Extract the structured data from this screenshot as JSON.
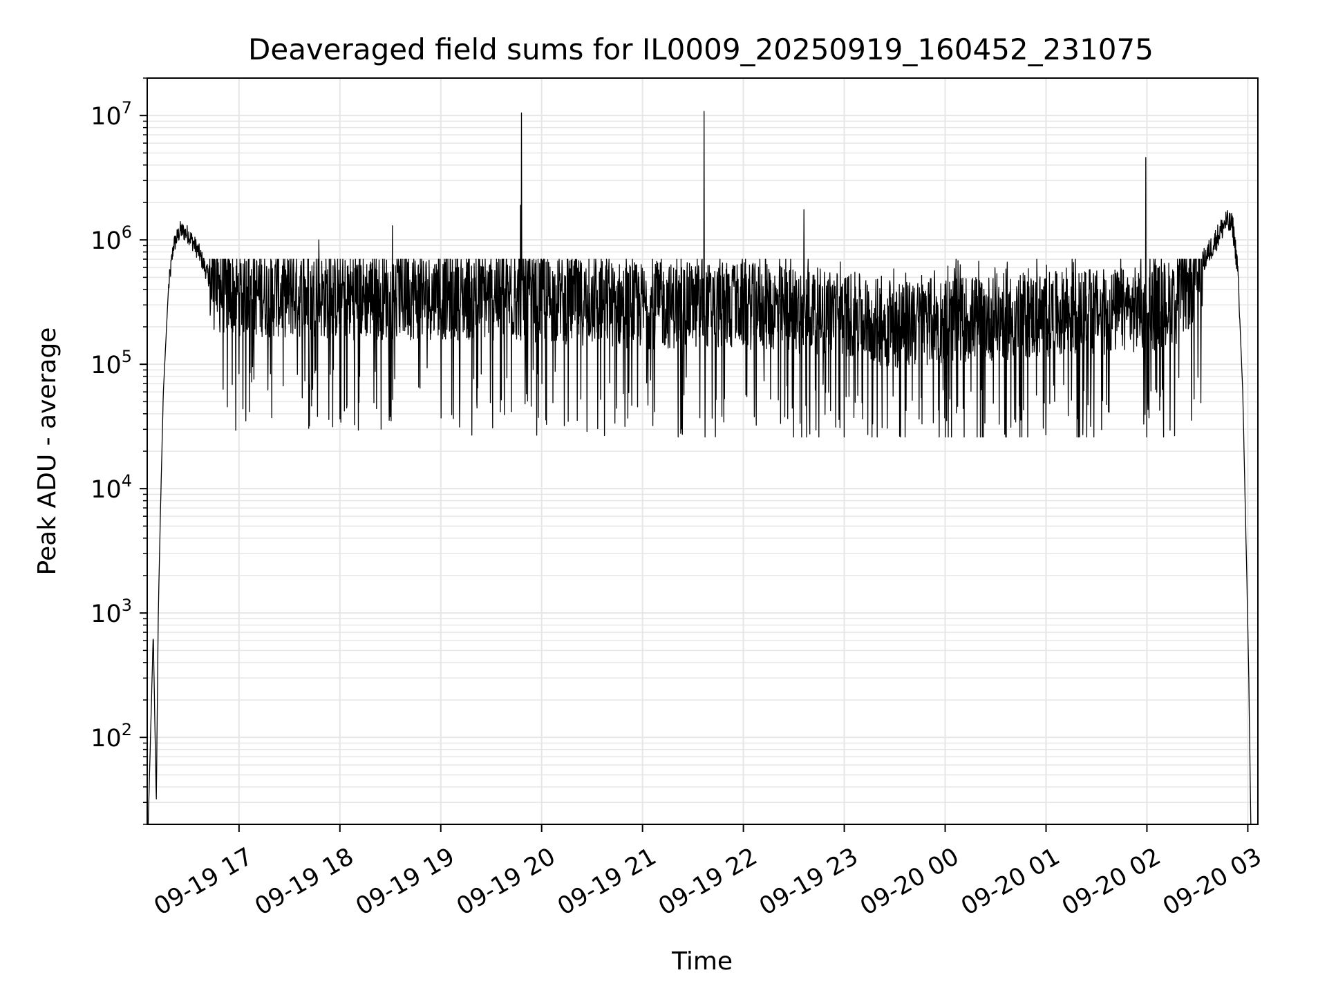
{
  "chart_data": {
    "type": "line",
    "title": "Deaveraged field sums for IL0009_20250919_160452_231075",
    "xlabel": "Time",
    "ylabel": "Peak ADU - average",
    "yscale": "log",
    "ylim": [
      20,
      20000000
    ],
    "xlim_hours": [
      16.09,
      27.1
    ],
    "grid": true,
    "x_ticks": [
      {
        "label": "09-19 17",
        "hour": 17
      },
      {
        "label": "09-19 18",
        "hour": 18
      },
      {
        "label": "09-19 19",
        "hour": 19
      },
      {
        "label": "09-19 20",
        "hour": 20
      },
      {
        "label": "09-19 21",
        "hour": 21
      },
      {
        "label": "09-19 22",
        "hour": 22
      },
      {
        "label": "09-19 23",
        "hour": 23
      },
      {
        "label": "09-20 00",
        "hour": 24
      },
      {
        "label": "09-20 01",
        "hour": 25
      },
      {
        "label": "09-20 02",
        "hour": 26
      },
      {
        "label": "09-20 03",
        "hour": 27
      }
    ],
    "y_ticks": [
      {
        "base": "10",
        "exp": "2",
        "value": 100
      },
      {
        "base": "10",
        "exp": "3",
        "value": 1000
      },
      {
        "base": "10",
        "exp": "4",
        "value": 10000
      },
      {
        "base": "10",
        "exp": "5",
        "value": 100000
      },
      {
        "base": "10",
        "exp": "6",
        "value": 1000000
      },
      {
        "base": "10",
        "exp": "7",
        "value": 10000000
      }
    ],
    "series": [
      {
        "name": "deaveraged field sums",
        "envelope": [
          [
            16.1,
            20
          ],
          [
            16.15,
            700
          ],
          [
            16.18,
            30
          ],
          [
            16.2,
            1000
          ],
          [
            16.22,
            6000
          ],
          [
            16.25,
            60000
          ],
          [
            16.3,
            400000
          ],
          [
            16.35,
            900000
          ],
          [
            16.42,
            1200000
          ],
          [
            16.5,
            1100000
          ],
          [
            16.6,
            800000
          ],
          [
            16.7,
            500000
          ],
          [
            16.8,
            420000
          ],
          [
            17.2,
            400000
          ],
          [
            18.0,
            380000
          ],
          [
            19.0,
            380000
          ],
          [
            20.0,
            360000
          ],
          [
            21.0,
            320000
          ],
          [
            22.0,
            320000
          ],
          [
            23.0,
            280000
          ],
          [
            23.5,
            220000
          ],
          [
            24.0,
            250000
          ],
          [
            25.0,
            270000
          ],
          [
            25.5,
            280000
          ],
          [
            26.0,
            300000
          ],
          [
            26.3,
            350000
          ],
          [
            26.5,
            550000
          ],
          [
            26.65,
            900000
          ],
          [
            26.78,
            1400000
          ],
          [
            26.85,
            1300000
          ],
          [
            26.9,
            600000
          ],
          [
            26.95,
            60000
          ],
          [
            26.99,
            2000
          ],
          [
            27.01,
            300
          ],
          [
            27.03,
            20
          ]
        ],
        "spikes": [
          {
            "hour": 19.8,
            "value": 10500000
          },
          {
            "hour": 19.79,
            "value": 1900000
          },
          {
            "hour": 21.61,
            "value": 10800000
          },
          {
            "hour": 22.6,
            "value": 1750000
          },
          {
            "hour": 25.99,
            "value": 4600000
          },
          {
            "hour": 18.52,
            "value": 1300000
          },
          {
            "hour": 17.79,
            "value": 1000000
          }
        ],
        "noise_range": [
          26000,
          700000
        ]
      }
    ]
  }
}
